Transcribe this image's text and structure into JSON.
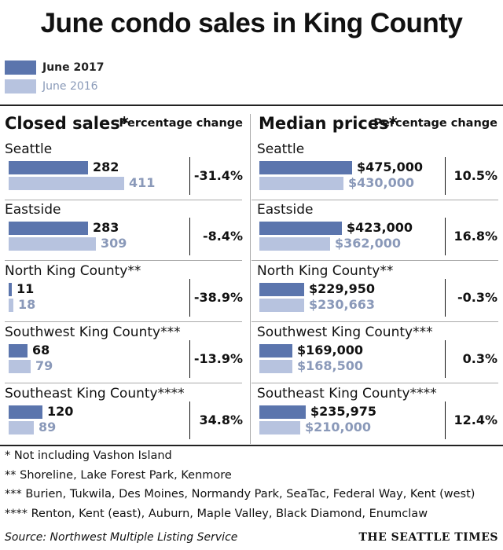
{
  "title": "June condo sales in King County",
  "legend": [
    {
      "label": "June 2017",
      "color": "#5b75ad"
    },
    {
      "label": "June 2016",
      "color": "#b7c3df"
    }
  ],
  "chart_data": {
    "type": "bar",
    "categories": [
      "Seattle",
      "Eastside",
      "North King County**",
      "Southwest King County***",
      "Southeast King County****"
    ],
    "panels": [
      {
        "header": "Closed sales*",
        "change_header": "Percentage change",
        "series": [
          {
            "name": "June 2017",
            "values": [
              282,
              283,
              11,
              68,
              120
            ],
            "labels": [
              "282",
              "283",
              "11",
              "68",
              "120"
            ]
          },
          {
            "name": "June 2016",
            "values": [
              411,
              309,
              18,
              79,
              89
            ],
            "labels": [
              "411",
              "309",
              "18",
              "79",
              "89"
            ]
          }
        ],
        "change": [
          "-31.4%",
          "-8.4%",
          "-38.9%",
          "-13.9%",
          "34.8%"
        ],
        "max": 411
      },
      {
        "header": "Median prices*",
        "change_header": "Percentage change",
        "series": [
          {
            "name": "June 2017",
            "values": [
              475000,
              423000,
              229950,
              169000,
              235975
            ],
            "labels": [
              "$475,000",
              "$423,000",
              "$229,950",
              "$169,000",
              "$235,975"
            ]
          },
          {
            "name": "June 2016",
            "values": [
              430000,
              362000,
              230663,
              168500,
              210000
            ],
            "labels": [
              "$430,000",
              "$362,000",
              "$230,663",
              "$168,500",
              "$210,000"
            ]
          }
        ],
        "change": [
          "10.5%",
          "16.8%",
          "-0.3%",
          "0.3%",
          "12.4%"
        ],
        "max": 475000
      }
    ]
  },
  "footnotes": [
    "* Not including Vashon Island",
    "** Shoreline, Lake Forest Park, Kenmore",
    "*** Burien, Tukwila, Des Moines, Normandy Park, SeaTac, Federal Way, Kent (west)",
    "**** Renton, Kent (east), Auburn, Maple Valley, Black Diamond, Enumclaw"
  ],
  "source": "Source: Northwest Multiple Listing Service",
  "brand": "THE SEATTLE TIMES"
}
